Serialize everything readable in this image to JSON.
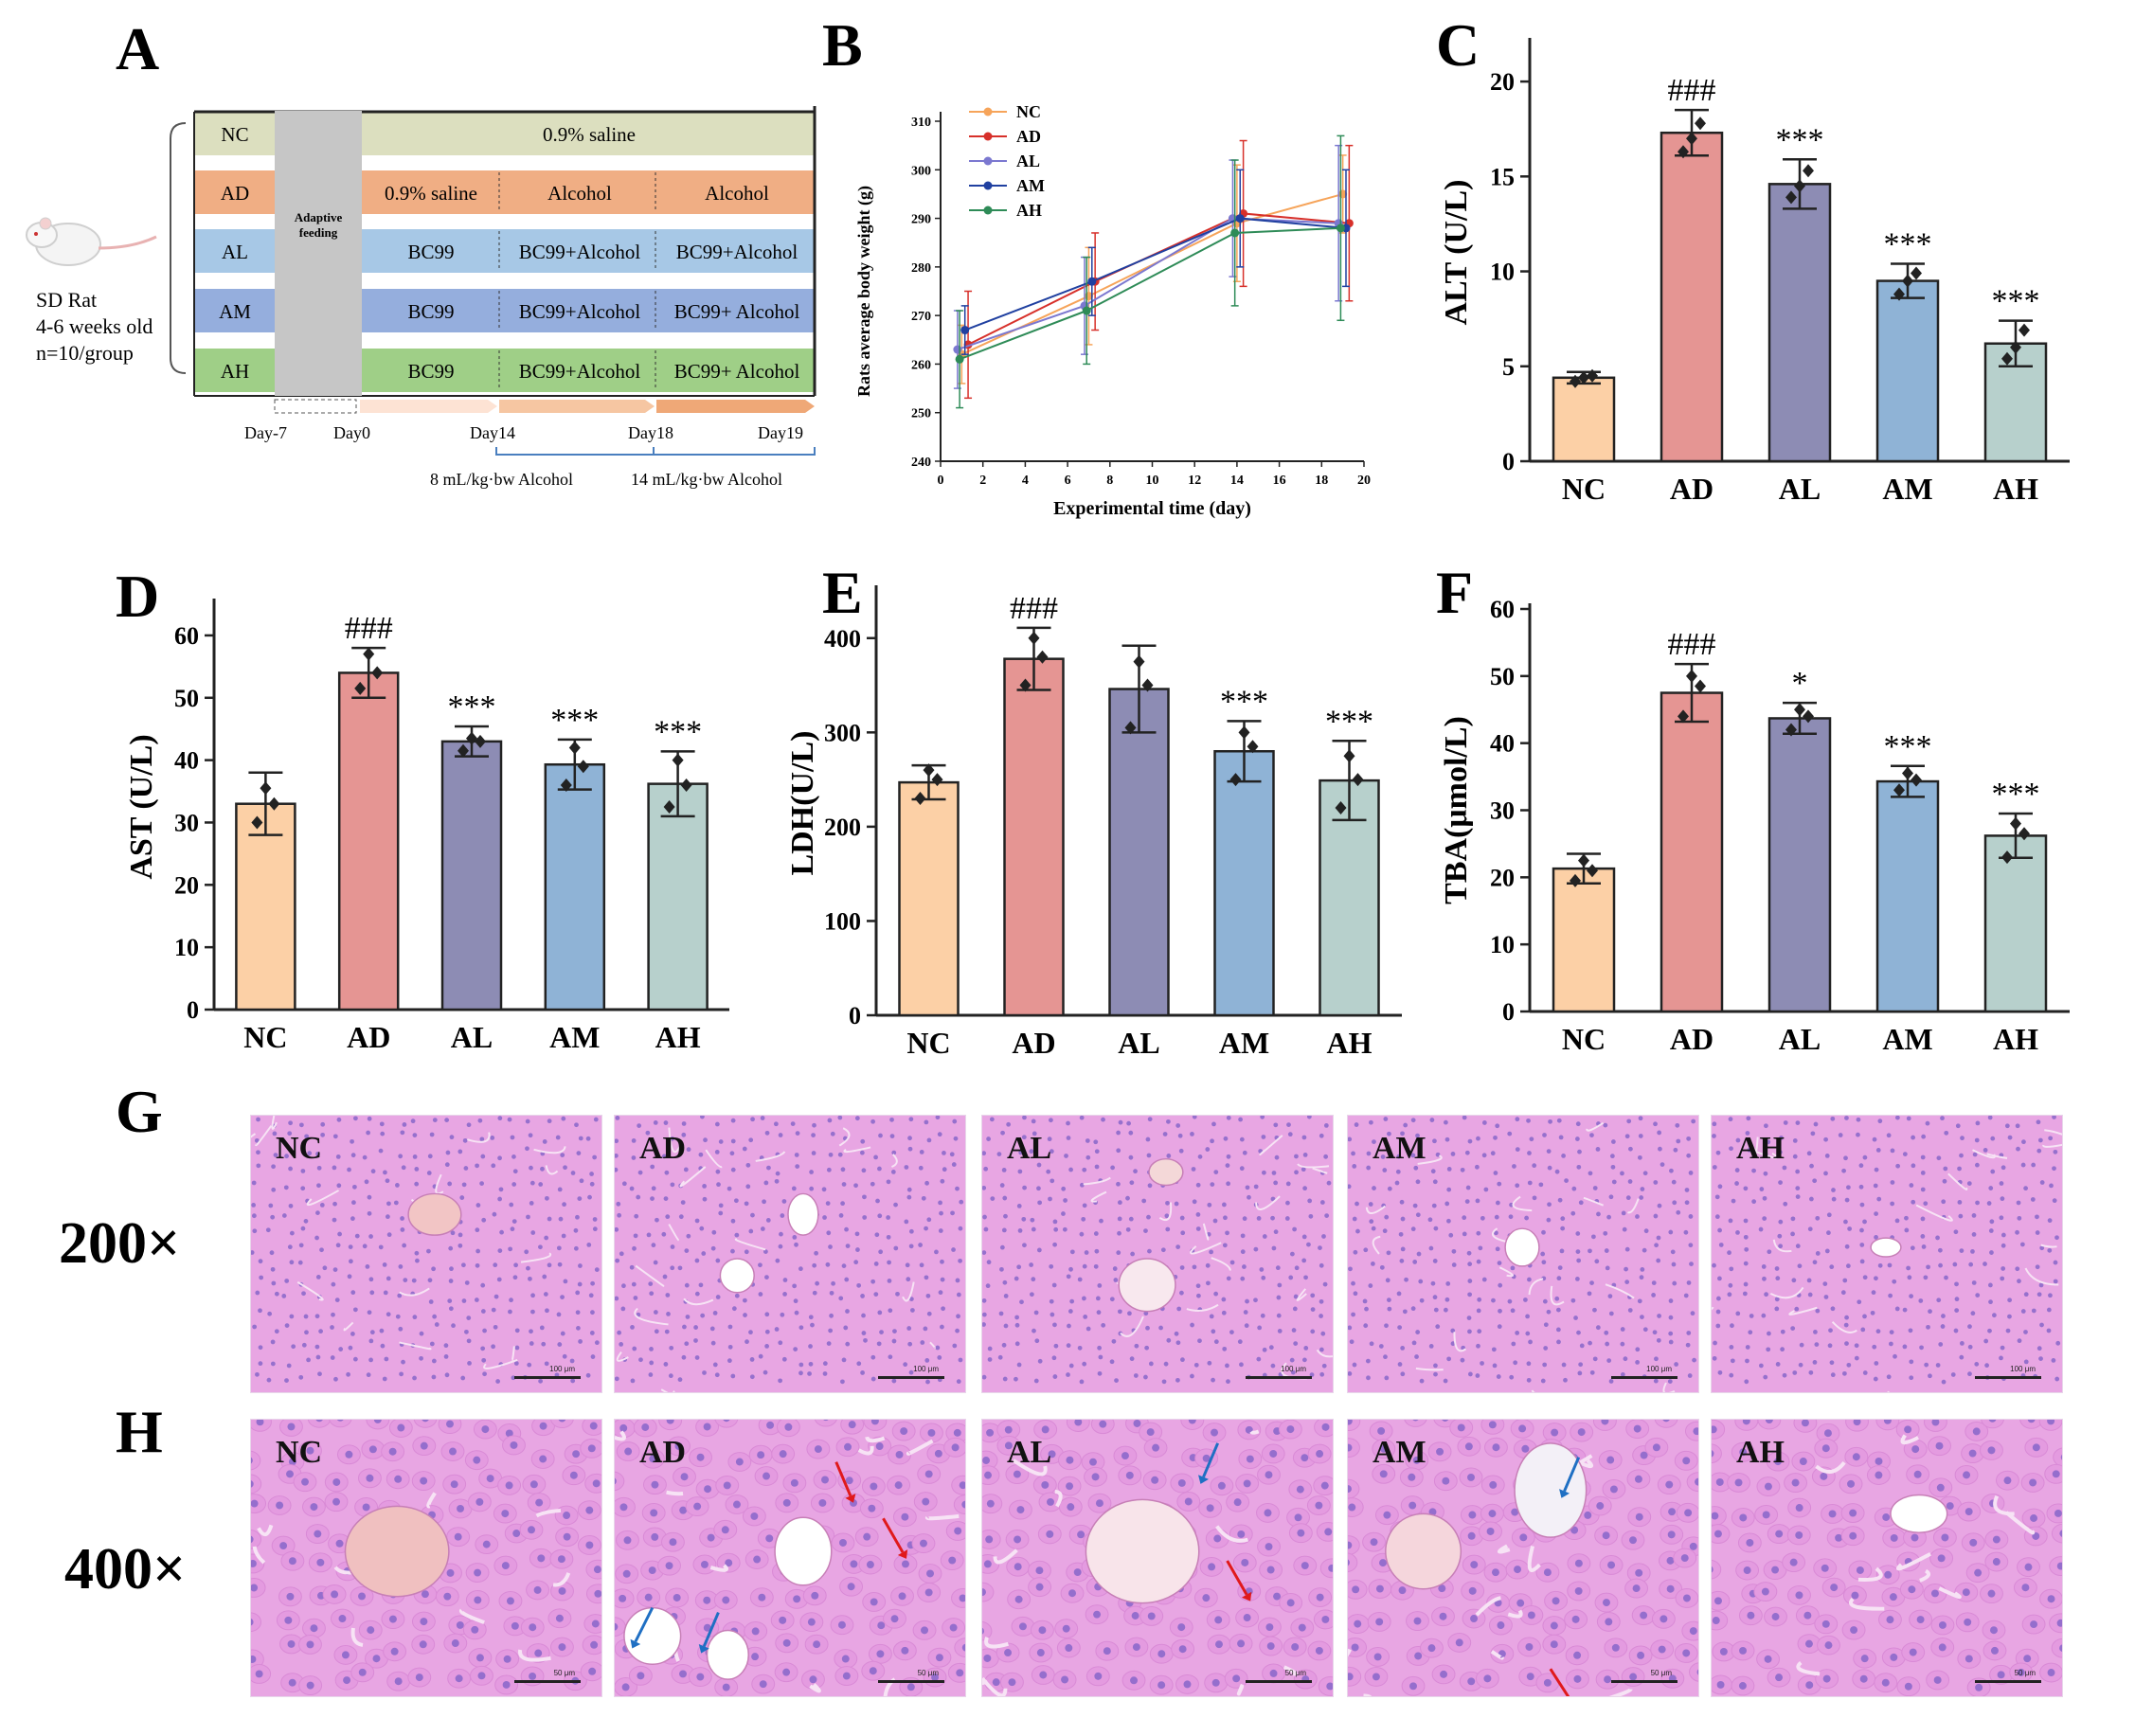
{
  "panel_labels": {
    "A": "A",
    "B": "B",
    "C": "C",
    "D": "D",
    "E": "E",
    "F": "F",
    "G": "G",
    "H": "H"
  },
  "colors": {
    "NC": "#fcd0a6",
    "AD": "#e59593",
    "AL": "#8d8cb4",
    "AM": "#8fb3d6",
    "AH": "#b7d0cc",
    "lineNC": "#f6a45a",
    "lineAD": "#d7302a",
    "lineAL": "#7b78d0",
    "lineAM": "#2040a0",
    "lineAH": "#2e8b57",
    "rowNC": "#dcdfbf",
    "rowAD": "#f0ae84",
    "rowAL": "#a7c8e6",
    "rowAM": "#95aedd",
    "rowAH": "#9fcf87",
    "adaptive": "#c6c6c6",
    "tissue": "#e8a6e3",
    "nuclei": "#8766c9",
    "arrowRed": "#e0191b",
    "arrowBlue": "#1f6fc3"
  },
  "schedule": {
    "groups": [
      "NC",
      "AD",
      "AL",
      "AM",
      "AH"
    ],
    "adaptive_label_1": "Adaptive",
    "adaptive_label_2": "feeding",
    "nc_treatment": "0.9% saline",
    "ad_cells": [
      "0.9% saline",
      "Alcohol",
      "Alcohol"
    ],
    "al_cells": [
      "BC99",
      "BC99+Alcohol",
      "BC99+Alcohol"
    ],
    "am_cells": [
      "BC99",
      "BC99+Alcohol",
      "BC99+ Alcohol"
    ],
    "ah_cells": [
      "BC99",
      "BC99+Alcohol",
      "BC99+ Alcohol"
    ],
    "rat_label": [
      "SD Rat",
      "4-6 weeks old",
      "n=10/group"
    ],
    "days": [
      "Day-7",
      "Day0",
      "Day14",
      "Day18",
      "Day19"
    ],
    "dose_1": "8 mL/kg·bw Alcohol",
    "dose_2": "14 mL/kg·bw Alcohol"
  },
  "chart_data": [
    {
      "panel": "B",
      "type": "line",
      "title": "",
      "xlabel": "Experimental time (day)",
      "ylabel": "Rats average body weight (g)",
      "x": [
        1,
        7,
        14,
        19
      ],
      "xlim": [
        0,
        20
      ],
      "ylim": [
        240,
        310
      ],
      "xticks": [
        0,
        2,
        4,
        6,
        8,
        10,
        12,
        14,
        16,
        18,
        20
      ],
      "yticks": [
        240,
        250,
        260,
        270,
        280,
        290,
        300,
        310
      ],
      "series": [
        {
          "name": "NC",
          "values": [
            262,
            274,
            289,
            295
          ],
          "err": [
            6,
            10,
            12,
            8
          ]
        },
        {
          "name": "AD",
          "values": [
            264,
            277,
            291,
            289
          ],
          "err": [
            11,
            10,
            15,
            16
          ]
        },
        {
          "name": "AL",
          "values": [
            263,
            272,
            290,
            289
          ],
          "err": [
            8,
            10,
            12,
            16
          ]
        },
        {
          "name": "AM",
          "values": [
            267,
            277,
            290,
            288
          ],
          "err": [
            5,
            7,
            10,
            12
          ]
        },
        {
          "name": "AH",
          "values": [
            261,
            271,
            287,
            288
          ],
          "err": [
            10,
            11,
            15,
            19
          ]
        }
      ]
    },
    {
      "panel": "C",
      "type": "bar",
      "categories": [
        "NC",
        "AD",
        "AL",
        "AM",
        "AH"
      ],
      "values": [
        4.4,
        17.3,
        14.6,
        9.5,
        6.2
      ],
      "errors": [
        0.3,
        1.2,
        1.3,
        0.9,
        1.2
      ],
      "points": [
        [
          4.2,
          4.5,
          4.4
        ],
        [
          16.3,
          17.8,
          17.0
        ],
        [
          13.9,
          15.3,
          14.5
        ],
        [
          8.8,
          9.9,
          9.5
        ],
        [
          5.4,
          6.9,
          6.0
        ]
      ],
      "annotations": [
        "",
        "###",
        "***",
        "***",
        "***"
      ],
      "ylabel": "ALT (U/L)",
      "ylim": [
        0,
        22
      ],
      "yticks": [
        0,
        5,
        10,
        15,
        20
      ]
    },
    {
      "panel": "D",
      "type": "bar",
      "categories": [
        "NC",
        "AD",
        "AL",
        "AM",
        "AH"
      ],
      "values": [
        33,
        54,
        43,
        39.3,
        36.2
      ],
      "errors": [
        5,
        4,
        2.4,
        4,
        5.2
      ],
      "points": [
        [
          30,
          33,
          35.5
        ],
        [
          51.5,
          54,
          57
        ],
        [
          41.5,
          43,
          43.5
        ],
        [
          36,
          39,
          42
        ],
        [
          32.5,
          36,
          40
        ]
      ],
      "annotations": [
        "",
        "###",
        "***",
        "***",
        "***"
      ],
      "ylabel": "AST (U/L)",
      "ylim": [
        0,
        65
      ],
      "yticks": [
        0,
        10,
        20,
        30,
        40,
        50,
        60
      ]
    },
    {
      "panel": "E",
      "type": "bar",
      "categories": [
        "NC",
        "AD",
        "AL",
        "AM",
        "AH"
      ],
      "values": [
        247,
        378,
        346,
        280,
        249
      ],
      "errors": [
        18,
        33,
        46,
        32,
        42
      ],
      "points": [
        [
          230,
          250,
          260
        ],
        [
          350,
          380,
          400
        ],
        [
          305,
          350,
          375
        ],
        [
          250,
          285,
          300
        ],
        [
          220,
          250,
          275
        ]
      ],
      "annotations": [
        "",
        "###",
        "",
        "***",
        "***"
      ],
      "ylabel": "LDH(U/L)",
      "ylim": [
        0,
        450
      ],
      "yticks": [
        0,
        100,
        200,
        300,
        400
      ]
    },
    {
      "panel": "F",
      "type": "bar",
      "categories": [
        "NC",
        "AD",
        "AL",
        "AM",
        "AH"
      ],
      "values": [
        21.3,
        47.5,
        43.7,
        34.3,
        26.2
      ],
      "errors": [
        2.2,
        4.3,
        2.3,
        2.3,
        3.3
      ],
      "points": [
        [
          19.5,
          21,
          22.5
        ],
        [
          44,
          48.5,
          50
        ],
        [
          42,
          44,
          45
        ],
        [
          33,
          34.5,
          35.5
        ],
        [
          23,
          26.5,
          28
        ]
      ],
      "annotations": [
        "",
        "###",
        "*",
        "***",
        "***"
      ],
      "ylabel": "TBA(μmol/L)",
      "ylim": [
        0,
        60
      ],
      "yticks": [
        0,
        10,
        20,
        30,
        40,
        50,
        60
      ]
    }
  ],
  "histology": {
    "magnification_200": "200×",
    "magnification_400": "400×",
    "labels": [
      "NC",
      "AD",
      "AL",
      "AM",
      "AH"
    ],
    "scale_200": "100 μm",
    "scale_400": "50 μm"
  }
}
